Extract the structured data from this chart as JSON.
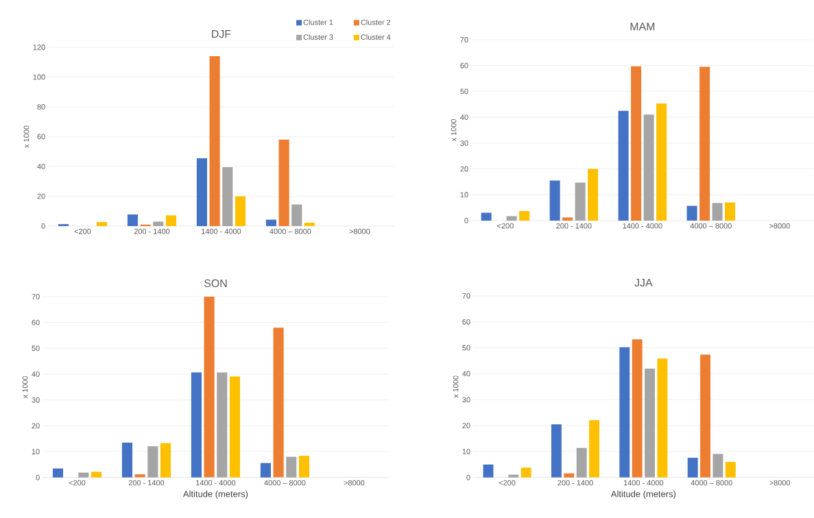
{
  "chart_data": [
    {
      "type": "bar",
      "title": "DJF",
      "ylabel": "x 1000",
      "categories": [
        "<200",
        "200 - 1400",
        "1400 - 4000",
        "4000 – 8000",
        ">8000"
      ],
      "ylim": [
        0,
        120
      ],
      "yticks": [
        0,
        20,
        40,
        60,
        80,
        100,
        120
      ],
      "grid": "y",
      "legend": "top right",
      "series": [
        {
          "name": "Cluster 1",
          "color": "#4472c4",
          "values": [
            1.3,
            7.8,
            45.5,
            4.3,
            0
          ]
        },
        {
          "name": "Cluster 2",
          "color": "#ed7d31",
          "values": [
            0,
            1,
            114,
            58,
            0
          ]
        },
        {
          "name": "Cluster 3",
          "color": "#a5a5a5",
          "values": [
            0,
            3,
            39.5,
            14.5,
            0
          ]
        },
        {
          "name": "Cluster 4",
          "color": "#ffc000",
          "values": [
            2.7,
            7.2,
            20,
            2.3,
            0
          ]
        }
      ]
    },
    {
      "type": "bar",
      "title": "MAM",
      "ylabel": "x 1000",
      "categories": [
        "<200",
        "200 - 1400",
        "1400 - 4000",
        "4000 – 8000",
        ">8000"
      ],
      "ylim": [
        0,
        70
      ],
      "yticks": [
        0,
        10,
        20,
        30,
        40,
        50,
        60,
        70
      ],
      "grid": "y",
      "series": [
        {
          "color": "#4472c4",
          "values": [
            3,
            15.5,
            42.5,
            5.7,
            0
          ]
        },
        {
          "color": "#ed7d31",
          "values": [
            0,
            1.2,
            59.7,
            59.5,
            0
          ]
        },
        {
          "color": "#a5a5a5",
          "values": [
            1.7,
            14.7,
            41,
            6.8,
            0
          ]
        },
        {
          "color": "#ffc000",
          "values": [
            3.7,
            20,
            45.3,
            7,
            0
          ]
        }
      ]
    },
    {
      "type": "bar",
      "title": "SON",
      "ylabel": "x 1000",
      "xlabel": "Altitude (meters)",
      "categories": [
        "<200",
        "200 - 1400",
        "1400 - 4000",
        "4000 – 8000",
        ">8000"
      ],
      "ylim": [
        0,
        70
      ],
      "yticks": [
        0,
        10,
        20,
        30,
        40,
        50,
        60,
        70
      ],
      "grid": "y",
      "series": [
        {
          "color": "#4472c4",
          "values": [
            3.5,
            13.5,
            40.7,
            5.6,
            0
          ]
        },
        {
          "color": "#ed7d31",
          "values": [
            0,
            1.2,
            70,
            58,
            0
          ]
        },
        {
          "color": "#a5a5a5",
          "values": [
            1.9,
            12.1,
            40.7,
            8,
            0
          ]
        },
        {
          "color": "#ffc000",
          "values": [
            2.2,
            13.3,
            39.1,
            8.4,
            0
          ]
        }
      ]
    },
    {
      "type": "bar",
      "title": "JJA",
      "ylabel": "x 1000",
      "xlabel": "Altitude (meters)",
      "categories": [
        "<200",
        "200 - 1400",
        "1400 - 4000",
        "4000 – 8000",
        ">8000"
      ],
      "ylim": [
        0,
        70
      ],
      "yticks": [
        0,
        10,
        20,
        30,
        40,
        50,
        60,
        70
      ],
      "grid": "y",
      "series": [
        {
          "color": "#4472c4",
          "values": [
            5,
            20.5,
            50.2,
            7.6,
            0
          ]
        },
        {
          "color": "#ed7d31",
          "values": [
            0,
            1.6,
            53.3,
            47.4,
            0
          ]
        },
        {
          "color": "#a5a5a5",
          "values": [
            1.1,
            11.4,
            42,
            9.1,
            0
          ]
        },
        {
          "color": "#ffc000",
          "values": [
            3.8,
            22.1,
            45.9,
            6,
            0
          ]
        }
      ]
    }
  ]
}
